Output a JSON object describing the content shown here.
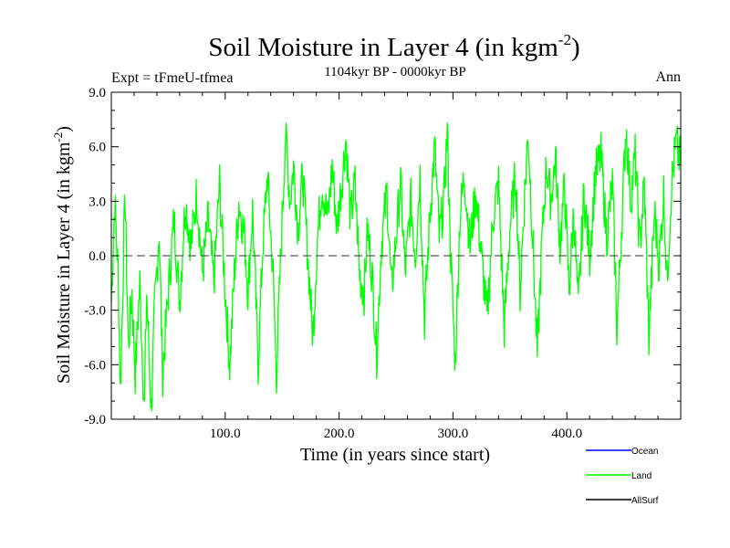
{
  "chart_data": {
    "type": "line",
    "title_main": "Soil Moisture in Layer 4 (in kgm",
    "title_sup": "-2",
    "title_close": ")",
    "subtitle": "1104kyr BP - 0000kyr BP",
    "left_label": "Expt = tFmeU-tfmea",
    "right_label": "Ann",
    "xlabel": "Time (in years since start)",
    "ylabel_main": "Soil Moisture in Layer 4 (in kgm",
    "ylabel_sup": "-2",
    "ylabel_close": ")",
    "xlim": [
      0,
      500
    ],
    "ylim": [
      -9,
      9
    ],
    "x_ticks": [
      100,
      200,
      300,
      400
    ],
    "x_tick_labels": [
      "100.0",
      "200.0",
      "300.0",
      "400.0"
    ],
    "y_ticks": [
      -9,
      -6,
      -3,
      0,
      3,
      6,
      9
    ],
    "y_tick_labels": [
      "-9.0",
      "-6.0",
      "-3.0",
      "0.0",
      "3.0",
      "6.0",
      "9.0"
    ],
    "zero_line": 0,
    "legend_position": "bottom-right, below plot",
    "colors": {
      "ocean": "#0000ff",
      "land": "#00ff00",
      "allsurf": "#000000"
    },
    "series": [
      {
        "name": "Ocean",
        "color": "#0000ff",
        "values": []
      },
      {
        "name": "Land",
        "color": "#00ff00",
        "keypoints": [
          [
            0,
            -2.5
          ],
          [
            3,
            3.0
          ],
          [
            6,
            -1.0
          ],
          [
            8,
            -7.5
          ],
          [
            10,
            -2.0
          ],
          [
            12,
            3.5
          ],
          [
            15,
            -5.0
          ],
          [
            18,
            -2.0
          ],
          [
            21,
            -6.5
          ],
          [
            25,
            -1.5
          ],
          [
            29,
            -8.5
          ],
          [
            31,
            -2.0
          ],
          [
            35,
            -8.5
          ],
          [
            38,
            -3.0
          ],
          [
            42,
            1.5
          ],
          [
            45,
            -6.5
          ],
          [
            50,
            -2.0
          ],
          [
            55,
            2.0
          ],
          [
            60,
            -2.5
          ],
          [
            65,
            3.0
          ],
          [
            70,
            0.5
          ],
          [
            75,
            3.5
          ],
          [
            80,
            -1.0
          ],
          [
            85,
            2.0
          ],
          [
            90,
            -1.5
          ],
          [
            95,
            4.0
          ],
          [
            100,
            -2.0
          ],
          [
            104,
            -6.0
          ],
          [
            108,
            -1.0
          ],
          [
            112,
            3.0
          ],
          [
            117,
            1.0
          ],
          [
            120,
            -2.0
          ],
          [
            124,
            2.5
          ],
          [
            129,
            -6.0
          ],
          [
            133,
            0.5
          ],
          [
            137,
            4.5
          ],
          [
            142,
            -1.0
          ],
          [
            145,
            -6.5
          ],
          [
            150,
            2.0
          ],
          [
            153,
            6.8
          ],
          [
            157,
            3.0
          ],
          [
            160,
            5.0
          ],
          [
            164,
            1.5
          ],
          [
            168,
            4.5
          ],
          [
            172,
            0.5
          ],
          [
            177,
            -4.5
          ],
          [
            181,
            1.0
          ],
          [
            185,
            4.0
          ],
          [
            190,
            2.0
          ],
          [
            194,
            5.0
          ],
          [
            198,
            1.5
          ],
          [
            203,
            4.5
          ],
          [
            206,
            6.5
          ],
          [
            210,
            2.0
          ],
          [
            214,
            4.0
          ],
          [
            218,
            -1.0
          ],
          [
            222,
            -2.0
          ],
          [
            225,
            1.5
          ],
          [
            229,
            -1.0
          ],
          [
            233,
            -5.5
          ],
          [
            237,
            0.5
          ],
          [
            242,
            3.5
          ],
          [
            246,
            -2.0
          ],
          [
            250,
            1.0
          ],
          [
            254,
            4.0
          ],
          [
            258,
            -1.0
          ],
          [
            263,
            3.0
          ],
          [
            267,
            0.0
          ],
          [
            271,
            4.5
          ],
          [
            275,
            -3.5
          ],
          [
            280,
            2.5
          ],
          [
            284,
            6.0
          ],
          [
            288,
            1.0
          ],
          [
            292,
            3.0
          ],
          [
            295,
            7.0
          ],
          [
            298,
            0.0
          ],
          [
            302,
            -6.0
          ],
          [
            306,
            2.0
          ],
          [
            310,
            4.5
          ],
          [
            315,
            0.5
          ],
          [
            320,
            3.5
          ],
          [
            325,
            0.0
          ],
          [
            330,
            -3.5
          ],
          [
            335,
            2.0
          ],
          [
            340,
            4.0
          ],
          [
            345,
            -4.0
          ],
          [
            350,
            1.5
          ],
          [
            355,
            4.5
          ],
          [
            359,
            -2.0
          ],
          [
            363,
            3.5
          ],
          [
            366,
            6.8
          ],
          [
            370,
            1.0
          ],
          [
            374,
            -5.5
          ],
          [
            378,
            0.5
          ],
          [
            382,
            5.0
          ],
          [
            386,
            3.0
          ],
          [
            390,
            5.5
          ],
          [
            394,
            0.5
          ],
          [
            398,
            4.0
          ],
          [
            402,
            -2.0
          ],
          [
            406,
            2.5
          ],
          [
            410,
            -3.0
          ],
          [
            415,
            3.5
          ],
          [
            420,
            0.0
          ],
          [
            425,
            4.5
          ],
          [
            430,
            5.5
          ],
          [
            435,
            1.0
          ],
          [
            440,
            4.0
          ],
          [
            444,
            -4.0
          ],
          [
            448,
            1.5
          ],
          [
            452,
            7.2
          ],
          [
            456,
            3.0
          ],
          [
            460,
            5.5
          ],
          [
            464,
            0.5
          ],
          [
            468,
            4.0
          ],
          [
            472,
            -4.5
          ],
          [
            477,
            2.5
          ],
          [
            481,
            -0.5
          ],
          [
            485,
            3.5
          ],
          [
            488,
            -1.5
          ],
          [
            492,
            4.0
          ],
          [
            496,
            6.2
          ],
          [
            500,
            5.0
          ]
        ]
      },
      {
        "name": "AllSurf",
        "color": "#000000",
        "values": []
      }
    ]
  }
}
